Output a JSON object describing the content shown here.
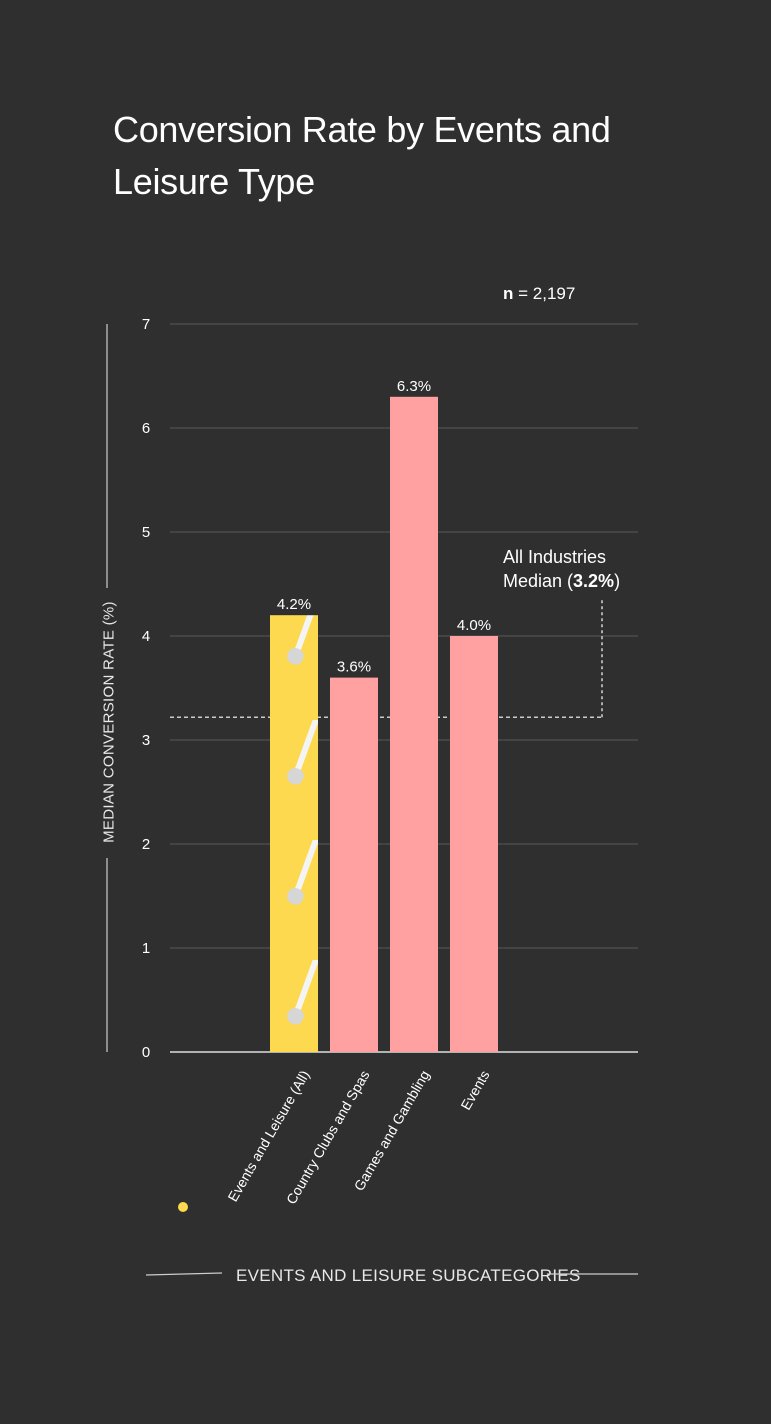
{
  "chart_data": {
    "type": "bar",
    "title": "Conversion Rate by Events and Leisure Type",
    "sample_size_label": "n",
    "sample_size_value": "= 2,197",
    "ylabel": "MEDIAN CONVERSION RATE (%)",
    "xlabel": "EVENTS AND LEISURE SUBCATEGORIES",
    "ylim": [
      0,
      7
    ],
    "yticks": [
      0,
      1,
      2,
      3,
      4,
      5,
      6,
      7
    ],
    "categories": [
      "Events and Leisure (All)",
      "Country Clubs and Spas",
      "Games and Gambling",
      "Events"
    ],
    "values": [
      4.2,
      3.6,
      6.3,
      4.0
    ],
    "value_labels": [
      "4.2%",
      "3.6%",
      "6.3%",
      "4.0%"
    ],
    "highlight_index": 0,
    "reference_line": {
      "value": 3.2,
      "label_line1": "All Industries",
      "label_line2_prefix": "Median (",
      "label_line2_value": "3.2%",
      "label_line2_suffix": ")"
    },
    "grid": true,
    "colors": {
      "background": "#2f2f2f",
      "highlight_bar": "#fcd94f",
      "bar": "#ffa1a1",
      "grid": "#5a5a5a",
      "text": "#ffffff",
      "legend_dot": "#fcd94f"
    }
  }
}
